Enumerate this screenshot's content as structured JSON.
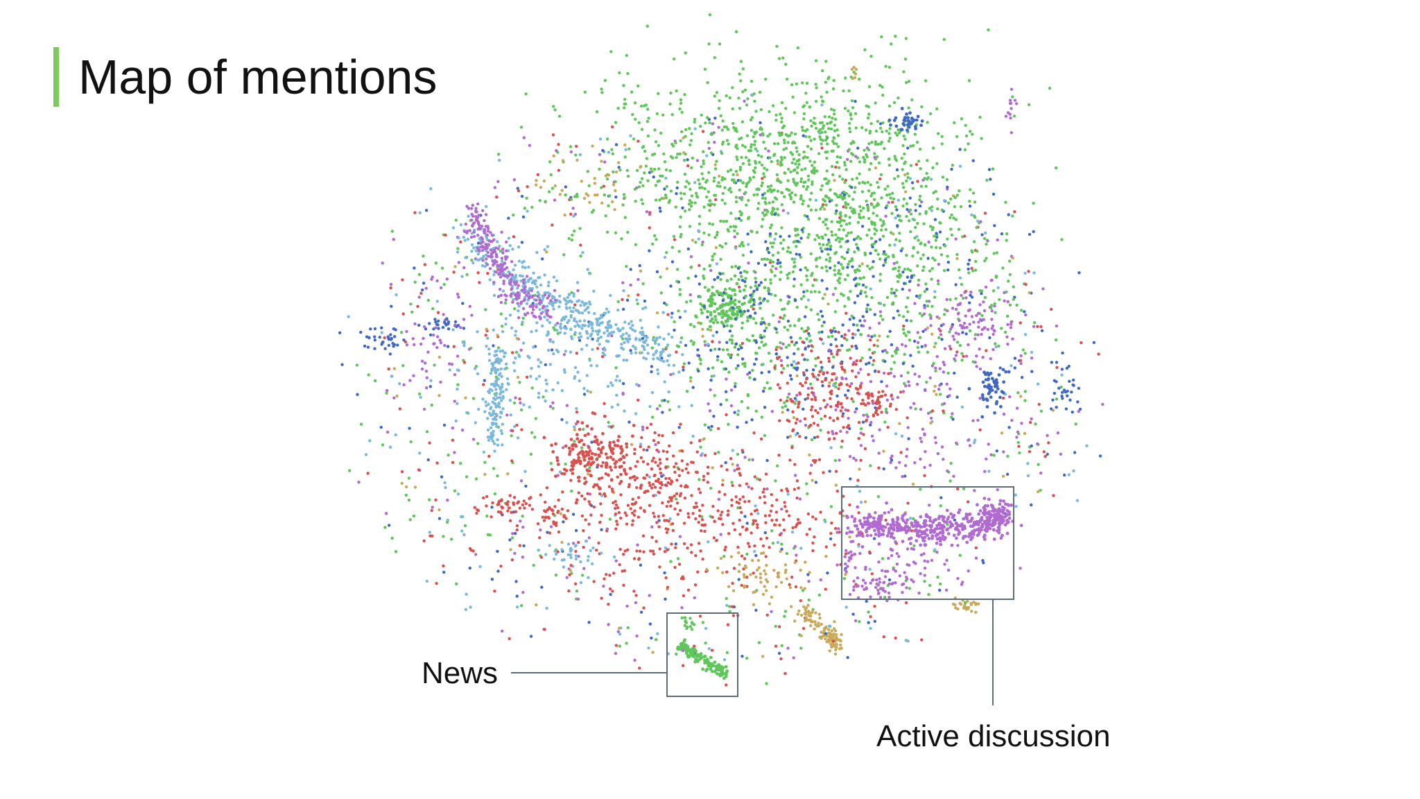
{
  "slide": {
    "title": "Map of mentions"
  },
  "colors": {
    "accent": "#7dc95e",
    "box_stroke": "#5b6b78",
    "label_text": "#111111"
  },
  "chart_data": {
    "type": "scatter",
    "title": "Map of mentions",
    "xlabel": "",
    "ylabel": "",
    "grid": false,
    "legend": "none",
    "axes_visible": false,
    "series_colors": {
      "green": "#5fc65a",
      "purple": "#b06ad0",
      "lightblue": "#7ab8dc",
      "blue": "#3e68c2",
      "red": "#d9504e",
      "gold": "#c8a95a"
    },
    "annotations": [
      {
        "label": "News",
        "highlighted_cluster": "green"
      },
      {
        "label": "Active discussion",
        "highlighted_cluster": "purple"
      }
    ]
  }
}
